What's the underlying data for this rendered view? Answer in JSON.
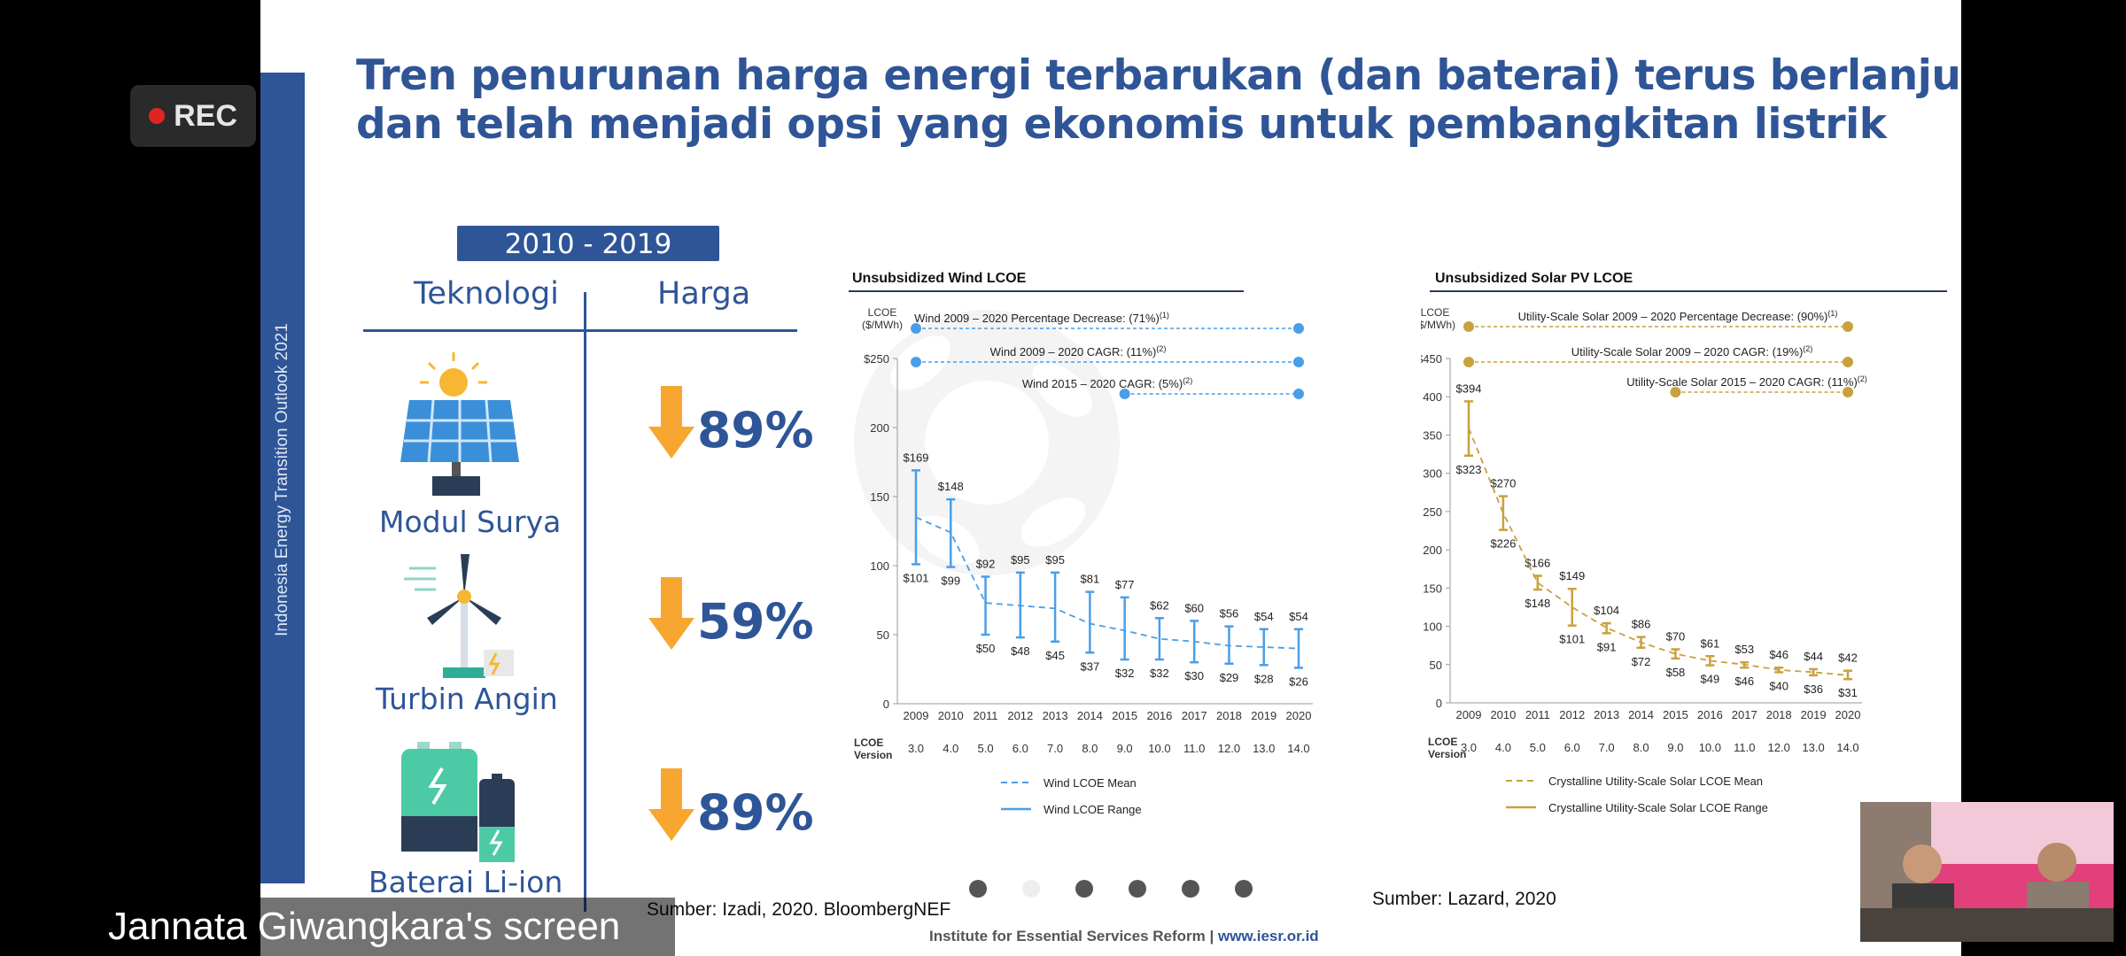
{
  "recording": {
    "label": "REC"
  },
  "screen_share": {
    "label": "Jannata Giwangkara's screen"
  },
  "slide": {
    "sidebar_text": "Indonesia Energy Transition Outlook 2021",
    "title_line1": "Tren penurunan harga energi terbarukan (dan baterai) terus berlanjut,",
    "title_line2": "dan telah menjadi opsi yang ekonomis untuk pembangkitan listrik",
    "table": {
      "period": "2010 - 2019",
      "col_tech": "Teknologi",
      "col_price": "Harga",
      "rows": [
        {
          "tech": "Modul Surya",
          "change": "89%"
        },
        {
          "tech": "Turbin Angin",
          "change": "59%"
        },
        {
          "tech": "Baterai Li-ion",
          "change": "89%"
        }
      ]
    },
    "source_left": "Sumber: Izadi, 2020. BloombergNEF",
    "source_right": "Sumber: Lazard, 2020",
    "footer_org": "Institute for Essential Services Reform | ",
    "footer_url": "www.iesr.or.id"
  },
  "colors": {
    "brand_blue": "#2e5597",
    "orange": "#f7a731",
    "wind": "#4a9ee8",
    "solar": "#c9a13e"
  },
  "chart_data": [
    {
      "type": "line",
      "title": "Unsubsidized Wind LCOE",
      "ylabel": "LCOE ($/MWh)",
      "ylim": [
        0,
        250
      ],
      "yticks": [
        "0",
        "50",
        "100",
        "150",
        "200",
        "$250"
      ],
      "x": [
        "2009",
        "2010",
        "2011",
        "2012",
        "2013",
        "2014",
        "2015",
        "2016",
        "2017",
        "2018",
        "2019",
        "2020"
      ],
      "version_label": "LCOE Version",
      "versions": [
        "3.0",
        "4.0",
        "5.0",
        "6.0",
        "7.0",
        "8.0",
        "9.0",
        "10.0",
        "11.0",
        "12.0",
        "13.0",
        "14.0"
      ],
      "high": [
        169,
        148,
        92,
        95,
        95,
        81,
        77,
        62,
        60,
        56,
        54,
        54
      ],
      "low": [
        101,
        99,
        50,
        48,
        45,
        37,
        32,
        32,
        30,
        29,
        28,
        26
      ],
      "high_labels": [
        "$169",
        "$148",
        "$92",
        "$95",
        "$95",
        "$81",
        "$77",
        "$62",
        "$60",
        "$56",
        "$54",
        "$54"
      ],
      "low_labels": [
        "$101",
        "$99",
        "$50",
        "$48",
        "$45",
        "$37",
        "$32",
        "$32",
        "$30",
        "$29",
        "$28",
        "$26"
      ],
      "mean": [
        135,
        124,
        73,
        71,
        69,
        58,
        53,
        47,
        45,
        42,
        41,
        40
      ],
      "annotations": [
        {
          "text": "Wind 2009 – 2020 Percentage Decrease: (71%)",
          "sup": "(1)",
          "from": "2009",
          "to": "2020"
        },
        {
          "text": "Wind 2009 – 2020 CAGR: (11%)",
          "sup": "(2)",
          "from": "2009",
          "to": "2020"
        },
        {
          "text": "Wind 2015 – 2020 CAGR: (5%)",
          "sup": "(2)",
          "from": "2015",
          "to": "2020"
        }
      ],
      "legend": [
        "Wind LCOE Mean",
        "Wind LCOE Range"
      ]
    },
    {
      "type": "line",
      "title": "Unsubsidized Solar PV LCOE",
      "ylabel": "LCOE ($/MWh)",
      "ylim": [
        0,
        450
      ],
      "yticks": [
        "0",
        "50",
        "100",
        "150",
        "200",
        "250",
        "300",
        "350",
        "400",
        "$450"
      ],
      "x": [
        "2009",
        "2010",
        "2011",
        "2012",
        "2013",
        "2014",
        "2015",
        "2016",
        "2017",
        "2018",
        "2019",
        "2020"
      ],
      "version_label": "LCOE Version",
      "versions": [
        "3.0",
        "4.0",
        "5.0",
        "6.0",
        "7.0",
        "8.0",
        "9.0",
        "10.0",
        "11.0",
        "12.0",
        "13.0",
        "14.0"
      ],
      "high": [
        394,
        270,
        166,
        149,
        104,
        86,
        70,
        61,
        53,
        46,
        44,
        42
      ],
      "low": [
        323,
        226,
        148,
        101,
        91,
        72,
        58,
        49,
        46,
        40,
        36,
        31
      ],
      "high_labels": [
        "$394",
        "$270",
        "$166",
        "$149",
        "$104",
        "$86",
        "$70",
        "$61",
        "$53",
        "$46",
        "$44",
        "$42"
      ],
      "low_labels": [
        "$323",
        "$226",
        "$148",
        "$101",
        "$91",
        "$72",
        "$58",
        "$49",
        "$46",
        "$40",
        "$36",
        "$31"
      ],
      "mean": [
        359,
        248,
        157,
        125,
        98,
        79,
        64,
        55,
        50,
        43,
        40,
        36
      ],
      "annotations": [
        {
          "text": "Utility-Scale Solar 2009 – 2020 Percentage Decrease: (90%)",
          "sup": "(1)",
          "from": "2009",
          "to": "2020"
        },
        {
          "text": "Utility-Scale Solar 2009 – 2020 CAGR: (19%)",
          "sup": "(2)",
          "from": "2009",
          "to": "2020"
        },
        {
          "text": "Utility-Scale Solar 2015 – 2020 CAGR: (11%)",
          "sup": "(2)",
          "from": "2015",
          "to": "2020"
        }
      ],
      "legend": [
        "Crystalline Utility-Scale Solar LCOE Mean",
        "Crystalline Utility-Scale Solar LCOE Range"
      ]
    }
  ]
}
